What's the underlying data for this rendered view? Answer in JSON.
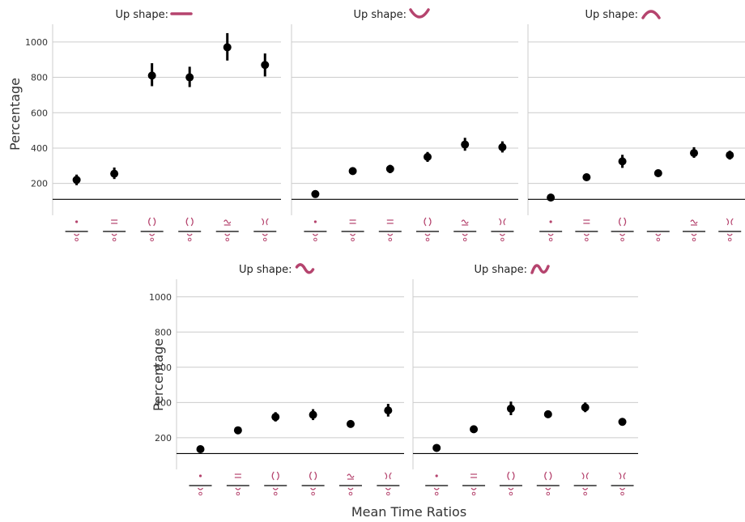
{
  "colors": {
    "accent": "#b5446e",
    "point": "#000000",
    "grid": "#cccccc",
    "reference": "#000000"
  },
  "chart_data": {
    "type": "scatter",
    "xlabel": "Mean Time Ratios",
    "ylabel": "Percentage",
    "ylim": [
      20,
      1100
    ],
    "yticks": [
      200,
      400,
      600,
      800,
      1000
    ],
    "reference_line": 110,
    "grid": true,
    "facets": [
      {
        "title_text": "Up shape:",
        "shape_icon": "flat-line-icon",
        "points": [
          {
            "y": 220,
            "lo": 190,
            "hi": 250
          },
          {
            "y": 255,
            "lo": 225,
            "hi": 290
          },
          {
            "y": 810,
            "lo": 750,
            "hi": 880
          },
          {
            "y": 800,
            "lo": 745,
            "hi": 860
          },
          {
            "y": 970,
            "lo": 895,
            "hi": 1050
          },
          {
            "y": 870,
            "lo": 805,
            "hi": 935
          }
        ]
      },
      {
        "title_text": "Up shape:",
        "shape_icon": "valley-curve-icon",
        "points": [
          {
            "y": 140,
            "lo": 130,
            "hi": 150
          },
          {
            "y": 270,
            "lo": 250,
            "hi": 290
          },
          {
            "y": 282,
            "lo": 258,
            "hi": 305
          },
          {
            "y": 350,
            "lo": 322,
            "hi": 378
          },
          {
            "y": 420,
            "lo": 385,
            "hi": 458
          },
          {
            "y": 405,
            "lo": 375,
            "hi": 438
          }
        ]
      },
      {
        "title_text": "Up shape:",
        "shape_icon": "hill-curve-icon",
        "points": [
          {
            "y": 120,
            "lo": 112,
            "hi": 128
          },
          {
            "y": 235,
            "lo": 215,
            "hi": 255
          },
          {
            "y": 325,
            "lo": 288,
            "hi": 362
          },
          {
            "y": 258,
            "lo": 240,
            "hi": 275
          },
          {
            "y": 372,
            "lo": 345,
            "hi": 405
          },
          {
            "y": 360,
            "lo": 335,
            "hi": 385
          }
        ]
      },
      {
        "title_text": "Up shape:",
        "shape_icon": "wave-curve-icon",
        "points": [
          {
            "y": 135,
            "lo": 125,
            "hi": 145
          },
          {
            "y": 242,
            "lo": 230,
            "hi": 255
          },
          {
            "y": 318,
            "lo": 292,
            "hi": 345
          },
          {
            "y": 330,
            "lo": 300,
            "hi": 362
          },
          {
            "y": 278,
            "lo": 258,
            "hi": 298
          },
          {
            "y": 355,
            "lo": 320,
            "hi": 392
          }
        ]
      },
      {
        "title_text": "Up shape:",
        "shape_icon": "s-curve-icon",
        "points": [
          {
            "y": 142,
            "lo": 132,
            "hi": 152
          },
          {
            "y": 248,
            "lo": 238,
            "hi": 258
          },
          {
            "y": 365,
            "lo": 328,
            "hi": 405
          },
          {
            "y": 333,
            "lo": 312,
            "hi": 355
          },
          {
            "y": 372,
            "lo": 345,
            "hi": 400
          },
          {
            "y": 290,
            "lo": 275,
            "hi": 305
          }
        ]
      }
    ]
  }
}
